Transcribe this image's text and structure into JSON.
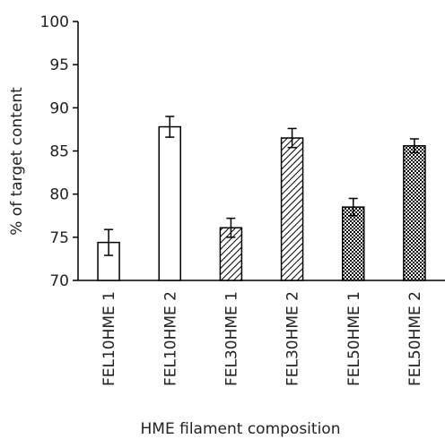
{
  "chart_data": {
    "type": "bar",
    "title": "",
    "xlabel": "HME filament composition",
    "ylabel": "% of target content",
    "ylim": [
      70,
      100
    ],
    "yticks": [
      70,
      75,
      80,
      85,
      90,
      95,
      100
    ],
    "grid": false,
    "legend": "none",
    "categories": [
      "FEL10HME 1",
      "FEL10HME 2",
      "FEL30HME 1",
      "FEL30HME 2",
      "FEL50HME 1",
      "FEL50HME 2"
    ],
    "values": [
      74.4,
      87.8,
      76.1,
      86.5,
      78.5,
      85.6
    ],
    "errors": [
      1.5,
      1.2,
      1.1,
      1.1,
      1.0,
      0.8
    ],
    "fills": [
      "white",
      "white",
      "diagonal-hatch",
      "diagonal-hatch",
      "checker",
      "checker"
    ],
    "colors": {
      "stroke": "#000000",
      "fill": "#ffffff",
      "text": "#222222"
    }
  }
}
